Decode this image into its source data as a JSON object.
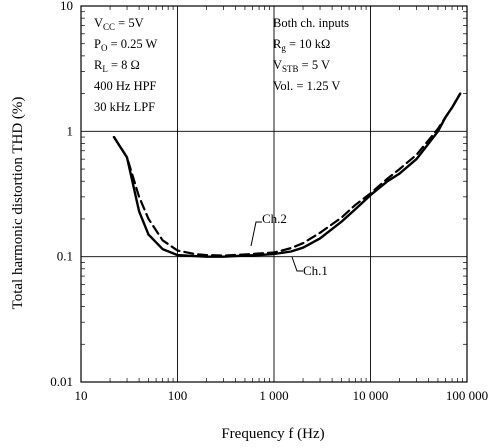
{
  "chart_data": {
    "type": "line",
    "xscale": "log",
    "yscale": "log",
    "xlim": [
      10,
      100000
    ],
    "ylim": [
      0.01,
      10
    ],
    "grid": true,
    "xlabel": "Frequency  f  (Hz)",
    "ylabel": "Total harmonic distortion  THD  (%)",
    "x_ticks": [
      10,
      100,
      1000,
      10000,
      100000
    ],
    "x_tick_labels": [
      "10",
      "100",
      "1 000",
      "10 000",
      "100 000"
    ],
    "y_ticks": [
      0.01,
      0.1,
      1,
      10
    ],
    "y_tick_labels": [
      "0.01",
      "0.1",
      "1",
      "10"
    ],
    "conditions": {
      "vcc": {
        "main": "V",
        "sub": "CC",
        "rest": " = 5V"
      },
      "po": {
        "main": "P",
        "sub": "O",
        "rest": " = 0.25 W"
      },
      "rl": {
        "main": "R",
        "sub": "L",
        "rest": " = 8 Ω"
      },
      "hpf": "400 Hz HPF",
      "lpf": "30 kHz LPF",
      "inputs": "Both ch. inputs",
      "rg": {
        "main": "R",
        "sub": "g",
        "rest": " = 10 kΩ"
      },
      "vstb": {
        "main": "V",
        "sub": "STB",
        "rest": " = 5 V"
      },
      "vol": "Vol. = 1.25 V"
    },
    "series": [
      {
        "name": "Ch.1",
        "style": "solid",
        "color": "#000000",
        "x": [
          22,
          30,
          40,
          50,
          70,
          100,
          150,
          200,
          300,
          500,
          700,
          1000,
          1500,
          2000,
          3000,
          5000,
          7000,
          10000,
          15000,
          20000,
          30000,
          40000,
          50000,
          60000,
          70000,
          85000
        ],
        "y": [
          0.9,
          0.62,
          0.23,
          0.15,
          0.115,
          0.103,
          0.101,
          0.1,
          0.1,
          0.102,
          0.103,
          0.105,
          0.11,
          0.118,
          0.14,
          0.19,
          0.24,
          0.31,
          0.4,
          0.46,
          0.6,
          0.8,
          1.0,
          1.3,
          1.55,
          2.0
        ]
      },
      {
        "name": "Ch.2",
        "style": "dashed",
        "color": "#000000",
        "x": [
          22,
          30,
          40,
          50,
          70,
          100,
          150,
          200,
          300,
          500,
          700,
          1000,
          1500,
          2000,
          3000,
          5000,
          7000,
          10000,
          15000,
          20000,
          30000,
          40000,
          50000,
          60000,
          70000,
          85000
        ],
        "y": [
          0.9,
          0.62,
          0.3,
          0.2,
          0.135,
          0.112,
          0.105,
          0.103,
          0.102,
          0.104,
          0.106,
          0.108,
          0.117,
          0.128,
          0.155,
          0.205,
          0.26,
          0.32,
          0.42,
          0.5,
          0.65,
          0.85,
          1.05,
          1.3,
          1.55,
          2.0
        ]
      }
    ]
  }
}
